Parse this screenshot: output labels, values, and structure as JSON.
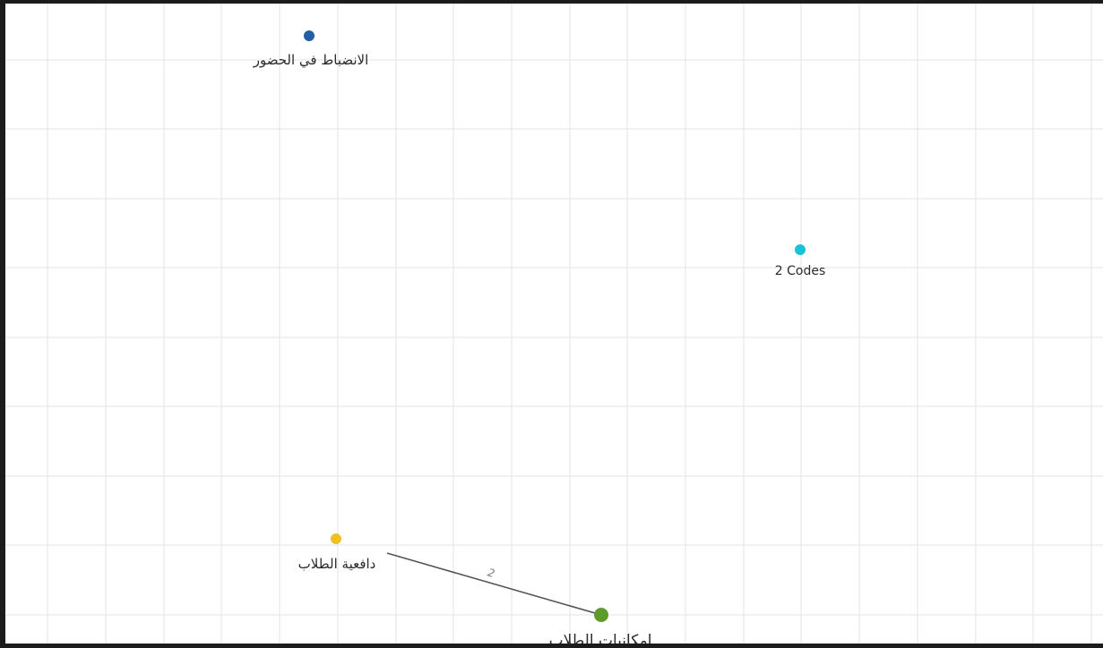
{
  "nodes": [
    {
      "id": "attendance",
      "label": "الانضباط في الحضور",
      "color": "#245ea5"
    },
    {
      "id": "codes",
      "label": "2 Codes",
      "color": "#19c2d4"
    },
    {
      "id": "motivation",
      "label": "دافعية الطلاب",
      "color": "#f0c020"
    },
    {
      "id": "abilities",
      "label": "امكانيات الطلاب",
      "color": "#5f9b2a"
    }
  ],
  "edges": [
    {
      "from": "motivation",
      "to": "abilities",
      "label": "2",
      "color": "#555555"
    }
  ],
  "grid": {
    "visible": true,
    "color": "#e3e3e3"
  }
}
